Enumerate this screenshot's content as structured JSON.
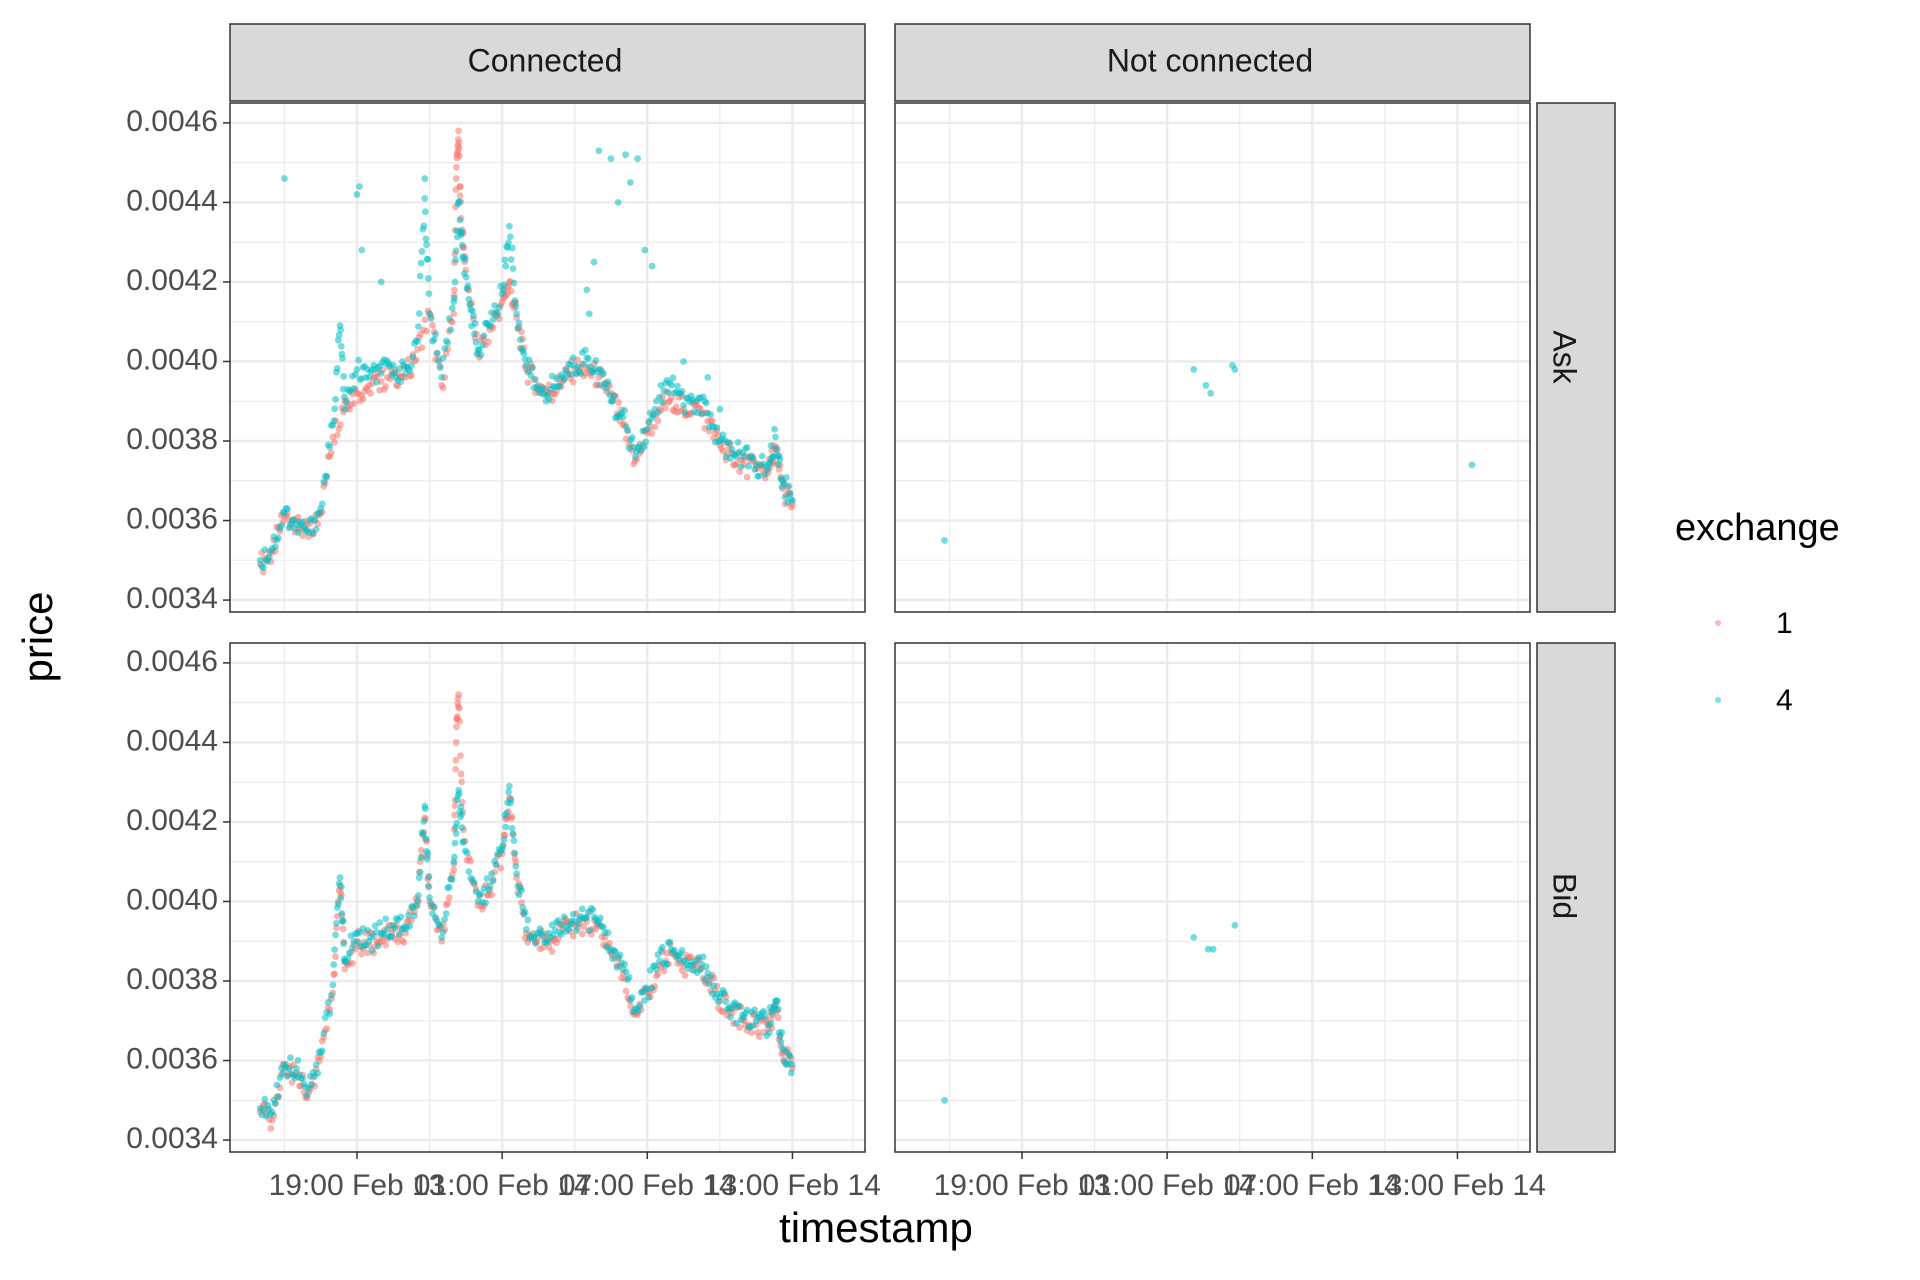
{
  "colors": {
    "exchange_1": "#F8766D",
    "exchange_4": "#00BFC4",
    "strip_bg": "#D9D9D9",
    "grid": "#EBEBEB",
    "border": "#333333"
  },
  "chart_data": {
    "type": "scatter",
    "facet_cols": [
      "Connected",
      "Not connected"
    ],
    "facet_rows": [
      "Ask",
      "Bid"
    ],
    "xlabel": "timestamp",
    "ylabel": "price",
    "x_tick_labels": [
      "19:00 Feb 13",
      "01:00 Feb 14",
      "07:00 Feb 14",
      "13:00 Feb 14"
    ],
    "y_ticks": [
      "0.0034",
      "0.0036",
      "0.0038",
      "0.0040",
      "0.0042",
      "0.0044",
      "0.0046"
    ],
    "ylim": [
      0.00337,
      0.00465
    ],
    "xlim_hours_axis": [
      13.75,
      40.0
    ],
    "grid": true,
    "legend": {
      "title": "exchange",
      "entries": [
        "1",
        "4"
      ],
      "position": "right"
    },
    "series": [
      {
        "name": "1",
        "facet": "Connected/Ask",
        "points": [
          [
            15.0,
            0.00349
          ],
          [
            15.5,
            0.00352
          ],
          [
            16.0,
            0.00361
          ],
          [
            16.5,
            0.0036
          ],
          [
            17.0,
            0.00356
          ],
          [
            17.5,
            0.00362
          ],
          [
            18.0,
            0.00381
          ],
          [
            18.5,
            0.0039
          ],
          [
            19.0,
            0.00392
          ],
          [
            19.5,
            0.00394
          ],
          [
            20.0,
            0.00395
          ],
          [
            20.5,
            0.00397
          ],
          [
            21.0,
            0.00396
          ],
          [
            21.5,
            0.00403
          ],
          [
            22.0,
            0.00412
          ],
          [
            22.5,
            0.00394
          ],
          [
            23.0,
            0.00412
          ],
          [
            23.1,
            0.00446
          ],
          [
            23.2,
            0.00458
          ],
          [
            23.3,
            0.00436
          ],
          [
            23.5,
            0.00423
          ],
          [
            24.0,
            0.00402
          ],
          [
            24.5,
            0.00408
          ],
          [
            25.0,
            0.00415
          ],
          [
            25.3,
            0.0042
          ],
          [
            25.6,
            0.00411
          ],
          [
            26.0,
            0.00398
          ],
          [
            26.5,
            0.00394
          ],
          [
            27.0,
            0.00392
          ],
          [
            27.5,
            0.00395
          ],
          [
            28.0,
            0.00398
          ],
          [
            28.5,
            0.00398
          ],
          [
            29.0,
            0.00396
          ],
          [
            29.5,
            0.00392
          ],
          [
            30.0,
            0.00384
          ],
          [
            30.5,
            0.00375
          ],
          [
            31.0,
            0.00382
          ],
          [
            31.5,
            0.00388
          ],
          [
            32.0,
            0.00391
          ],
          [
            32.5,
            0.00388
          ],
          [
            33.0,
            0.00389
          ],
          [
            33.5,
            0.00385
          ],
          [
            34.0,
            0.00379
          ],
          [
            34.5,
            0.00377
          ],
          [
            35.0,
            0.00374
          ],
          [
            35.5,
            0.00373
          ],
          [
            36.0,
            0.00372
          ],
          [
            36.3,
            0.00378
          ],
          [
            36.6,
            0.00368
          ],
          [
            37.0,
            0.00364
          ]
        ]
      },
      {
        "name": "4",
        "facet": "Connected/Ask",
        "points": [
          [
            15.0,
            0.0035
          ],
          [
            15.5,
            0.00353
          ],
          [
            16.0,
            0.00362
          ],
          [
            16.5,
            0.00359
          ],
          [
            17.0,
            0.00357
          ],
          [
            17.5,
            0.00363
          ],
          [
            18.0,
            0.00384
          ],
          [
            18.3,
            0.00409
          ],
          [
            18.5,
            0.00388
          ],
          [
            19.0,
            0.00398
          ],
          [
            19.5,
            0.00396
          ],
          [
            20.0,
            0.00397
          ],
          [
            20.5,
            0.00399
          ],
          [
            21.0,
            0.00397
          ],
          [
            21.5,
            0.00405
          ],
          [
            21.8,
            0.00441
          ],
          [
            22.0,
            0.00412
          ],
          [
            22.5,
            0.00396
          ],
          [
            23.0,
            0.00415
          ],
          [
            23.2,
            0.0044
          ],
          [
            23.4,
            0.00426
          ],
          [
            23.7,
            0.00413
          ],
          [
            24.0,
            0.00403
          ],
          [
            24.5,
            0.00409
          ],
          [
            25.0,
            0.00417
          ],
          [
            25.3,
            0.00434
          ],
          [
            25.6,
            0.00412
          ],
          [
            26.0,
            0.00399
          ],
          [
            26.5,
            0.00393
          ],
          [
            27.0,
            0.00393
          ],
          [
            27.5,
            0.00396
          ],
          [
            28.0,
            0.00399
          ],
          [
            28.5,
            0.00401
          ],
          [
            29.0,
            0.00398
          ],
          [
            29.5,
            0.0039
          ],
          [
            30.0,
            0.00386
          ],
          [
            30.5,
            0.00376
          ],
          [
            31.0,
            0.00383
          ],
          [
            31.5,
            0.00391
          ],
          [
            32.0,
            0.00394
          ],
          [
            32.5,
            0.00389
          ],
          [
            33.0,
            0.0039
          ],
          [
            33.5,
            0.00387
          ],
          [
            34.0,
            0.0038
          ],
          [
            34.5,
            0.00378
          ],
          [
            35.0,
            0.00376
          ],
          [
            35.5,
            0.00374
          ],
          [
            36.0,
            0.00373
          ],
          [
            36.3,
            0.00381
          ],
          [
            36.6,
            0.0037
          ],
          [
            37.0,
            0.00365
          ]
        ]
      },
      {
        "name": "4",
        "facet": "Connected/Ask (outliers)",
        "points": [
          [
            16.0,
            0.00446
          ],
          [
            19.0,
            0.00442
          ],
          [
            19.1,
            0.00444
          ],
          [
            19.2,
            0.00428
          ],
          [
            20.0,
            0.0042
          ],
          [
            21.8,
            0.00446
          ],
          [
            28.5,
            0.00418
          ],
          [
            28.6,
            0.00412
          ],
          [
            28.8,
            0.00425
          ],
          [
            29.0,
            0.00453
          ],
          [
            29.5,
            0.00451
          ],
          [
            29.8,
            0.0044
          ],
          [
            30.1,
            0.00452
          ],
          [
            30.3,
            0.00445
          ],
          [
            30.6,
            0.00451
          ],
          [
            30.9,
            0.00428
          ],
          [
            31.2,
            0.00424
          ],
          [
            32.5,
            0.004
          ],
          [
            33.5,
            0.00396
          ],
          [
            34.0,
            0.00388
          ]
        ]
      },
      {
        "name": "4",
        "facet": "Not connected/Ask",
        "points": [
          [
            15.8,
            0.00355
          ],
          [
            26.1,
            0.00398
          ],
          [
            26.6,
            0.00394
          ],
          [
            26.8,
            0.00392
          ],
          [
            27.7,
            0.00399
          ],
          [
            27.8,
            0.00398
          ],
          [
            37.6,
            0.00374
          ]
        ]
      },
      {
        "name": "1",
        "facet": "Connected/Bid",
        "points": [
          [
            15.0,
            0.00347
          ],
          [
            15.5,
            0.00345
          ],
          [
            16.0,
            0.00358
          ],
          [
            16.5,
            0.00357
          ],
          [
            17.0,
            0.00352
          ],
          [
            17.5,
            0.00361
          ],
          [
            18.0,
            0.00377
          ],
          [
            18.3,
            0.00404
          ],
          [
            18.5,
            0.00383
          ],
          [
            19.0,
            0.0039
          ],
          [
            19.5,
            0.00389
          ],
          [
            20.0,
            0.00391
          ],
          [
            20.5,
            0.00393
          ],
          [
            21.0,
            0.00392
          ],
          [
            21.5,
            0.00399
          ],
          [
            21.8,
            0.00421
          ],
          [
            22.0,
            0.004
          ],
          [
            22.5,
            0.0039
          ],
          [
            23.0,
            0.00408
          ],
          [
            23.1,
            0.0044
          ],
          [
            23.2,
            0.00452
          ],
          [
            23.4,
            0.00418
          ],
          [
            24.0,
            0.00399
          ],
          [
            24.5,
            0.00403
          ],
          [
            25.0,
            0.00412
          ],
          [
            25.3,
            0.00426
          ],
          [
            25.6,
            0.00406
          ],
          [
            26.0,
            0.00392
          ],
          [
            26.5,
            0.00391
          ],
          [
            27.0,
            0.0039
          ],
          [
            27.5,
            0.00393
          ],
          [
            28.0,
            0.00394
          ],
          [
            28.5,
            0.00395
          ],
          [
            29.0,
            0.00394
          ],
          [
            29.5,
            0.00387
          ],
          [
            30.0,
            0.00382
          ],
          [
            30.5,
            0.00372
          ],
          [
            31.0,
            0.00377
          ],
          [
            31.5,
            0.00384
          ],
          [
            32.0,
            0.00387
          ],
          [
            32.5,
            0.00384
          ],
          [
            33.0,
            0.00384
          ],
          [
            33.5,
            0.00381
          ],
          [
            34.0,
            0.00375
          ],
          [
            34.5,
            0.00372
          ],
          [
            35.0,
            0.0037
          ],
          [
            35.5,
            0.00369
          ],
          [
            36.0,
            0.00368
          ],
          [
            36.3,
            0.00374
          ],
          [
            36.6,
            0.00362
          ],
          [
            37.0,
            0.00358
          ]
        ]
      },
      {
        "name": "4",
        "facet": "Connected/Bid",
        "points": [
          [
            15.0,
            0.00348
          ],
          [
            15.5,
            0.00347
          ],
          [
            16.0,
            0.00359
          ],
          [
            16.5,
            0.00358
          ],
          [
            17.0,
            0.00353
          ],
          [
            17.5,
            0.00362
          ],
          [
            18.0,
            0.00379
          ],
          [
            18.3,
            0.00406
          ],
          [
            18.5,
            0.00385
          ],
          [
            19.0,
            0.00392
          ],
          [
            19.5,
            0.0039
          ],
          [
            20.0,
            0.00392
          ],
          [
            20.5,
            0.00394
          ],
          [
            21.0,
            0.00393
          ],
          [
            21.5,
            0.004
          ],
          [
            21.8,
            0.00424
          ],
          [
            22.0,
            0.00401
          ],
          [
            22.5,
            0.00391
          ],
          [
            23.0,
            0.0041
          ],
          [
            23.2,
            0.00428
          ],
          [
            23.4,
            0.00415
          ],
          [
            24.0,
            0.004
          ],
          [
            24.5,
            0.00404
          ],
          [
            25.0,
            0.00413
          ],
          [
            25.3,
            0.00429
          ],
          [
            25.6,
            0.00407
          ],
          [
            26.0,
            0.00393
          ],
          [
            26.5,
            0.00392
          ],
          [
            27.0,
            0.00391
          ],
          [
            27.5,
            0.00394
          ],
          [
            28.0,
            0.00395
          ],
          [
            28.5,
            0.00396
          ],
          [
            29.0,
            0.00395
          ],
          [
            29.5,
            0.00388
          ],
          [
            30.0,
            0.00383
          ],
          [
            30.5,
            0.00373
          ],
          [
            31.0,
            0.00378
          ],
          [
            31.5,
            0.00385
          ],
          [
            32.0,
            0.00388
          ],
          [
            32.5,
            0.00385
          ],
          [
            33.0,
            0.00385
          ],
          [
            33.5,
            0.00382
          ],
          [
            34.0,
            0.00376
          ],
          [
            34.5,
            0.00373
          ],
          [
            35.0,
            0.00371
          ],
          [
            35.5,
            0.0037
          ],
          [
            36.0,
            0.00369
          ],
          [
            36.3,
            0.00375
          ],
          [
            36.6,
            0.00363
          ],
          [
            37.0,
            0.00359
          ]
        ]
      },
      {
        "name": "4",
        "facet": "Not connected/Bid",
        "points": [
          [
            15.8,
            0.0035
          ],
          [
            26.1,
            0.00391
          ],
          [
            26.7,
            0.00388
          ],
          [
            26.9,
            0.00388
          ],
          [
            27.8,
            0.00394
          ]
        ]
      }
    ]
  }
}
